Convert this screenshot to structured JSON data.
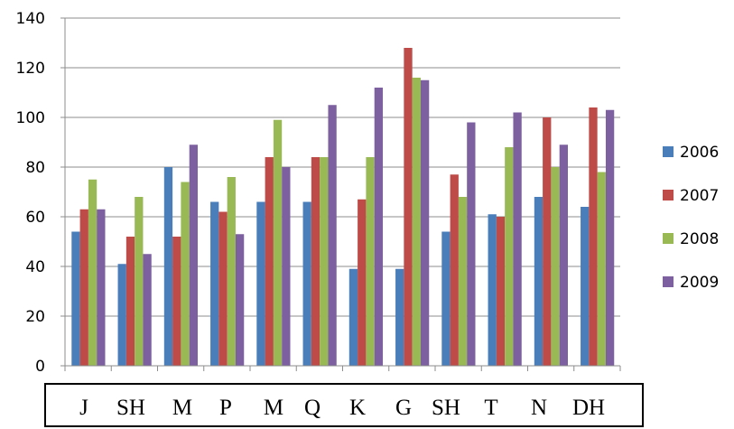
{
  "chart_data": {
    "type": "bar",
    "categories": [
      "J",
      "SH",
      "M",
      "P",
      "M",
      "Q",
      "K",
      "G",
      "SH",
      "T",
      "N",
      "DH"
    ],
    "series": [
      {
        "name": "2006",
        "color": "#4a7ebb",
        "values": [
          54,
          41,
          80,
          66,
          66,
          66,
          39,
          39,
          54,
          61,
          68,
          64
        ]
      },
      {
        "name": "2007",
        "color": "#be4b48",
        "values": [
          63,
          52,
          52,
          62,
          84,
          84,
          67,
          128,
          77,
          60,
          100,
          104
        ]
      },
      {
        "name": "2008",
        "color": "#98b954",
        "values": [
          75,
          68,
          74,
          76,
          99,
          84,
          84,
          116,
          68,
          88,
          80,
          78
        ]
      },
      {
        "name": "2009",
        "color": "#7d60a0",
        "values": [
          63,
          45,
          89,
          53,
          80,
          105,
          112,
          115,
          98,
          102,
          89,
          103
        ]
      }
    ],
    "ylim": [
      0,
      140
    ],
    "yticks": [
      0,
      20,
      40,
      60,
      80,
      100,
      120,
      140
    ],
    "grid": true,
    "legend": "right"
  }
}
